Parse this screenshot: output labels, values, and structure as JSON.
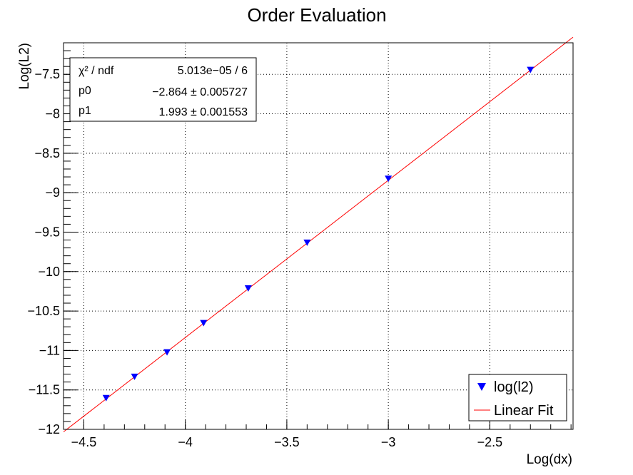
{
  "chart_data": {
    "type": "scatter",
    "title": "Order Evaluation",
    "xlabel": "Log(dx)",
    "ylabel": "Log(L2)",
    "xlim": [
      -4.6,
      -2.09
    ],
    "ylim": [
      -12,
      -7.1
    ],
    "grid": true,
    "xticks": [
      -4.5,
      -4,
      -3.5,
      -3,
      -2.5
    ],
    "xtick_labels": [
      "−4.5",
      "−4",
      "−3.5",
      "−3",
      "−2.5"
    ],
    "yticks": [
      -7.5,
      -8,
      -8.5,
      -9,
      -9.5,
      -10,
      -10.5,
      -11,
      -11.5,
      -12
    ],
    "ytick_labels": [
      "−7.5",
      "−8",
      "−8.5",
      "−9",
      "−9.5",
      "−10",
      "−10.5",
      "−11",
      "−11.5",
      "−12"
    ],
    "series": [
      {
        "name": "log(l2)",
        "kind": "points",
        "marker": "triangle-down",
        "color": "#0000ff",
        "x": [
          -4.39,
          -4.25,
          -4.09,
          -3.91,
          -3.69,
          -3.4,
          -3.0,
          -2.3
        ],
        "y": [
          -11.6,
          -11.33,
          -11.02,
          -10.65,
          -10.21,
          -9.63,
          -8.82,
          -7.44
        ]
      },
      {
        "name": "Linear Fit",
        "kind": "line",
        "color": "#ff0000",
        "x": [
          -4.6,
          -2.09
        ],
        "y": [
          -12.032,
          -7.029
        ]
      }
    ],
    "stats_box": {
      "rows": [
        {
          "label": "χ² / ndf",
          "value": "5.013e−05 / 6"
        },
        {
          "label": "p0",
          "value": "−2.864 ± 0.005727"
        },
        {
          "label": "p1",
          "value": "1.993 ± 0.001553"
        }
      ],
      "position": "top-left"
    },
    "legend": {
      "position": "bottom-right",
      "entries": [
        "log(l2)",
        "Linear Fit"
      ]
    }
  }
}
